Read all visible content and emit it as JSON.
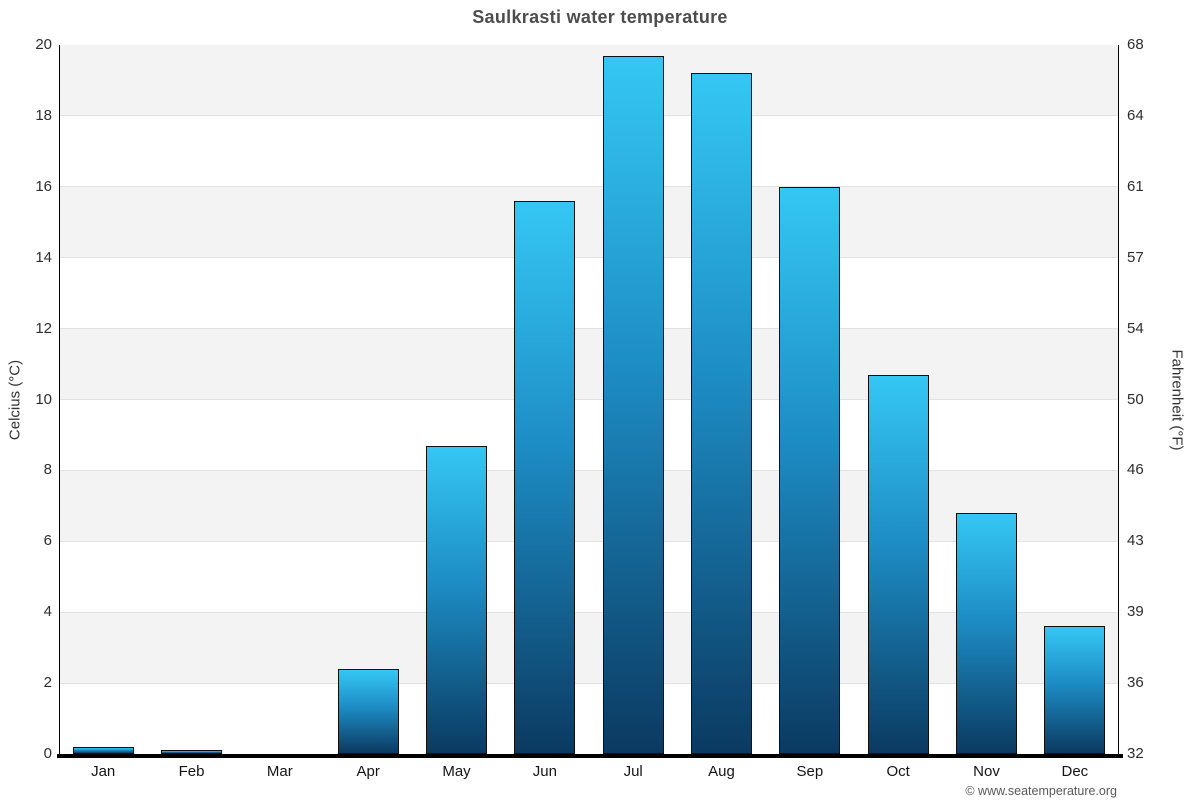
{
  "page": {
    "footer": "© www.seatemperature.org"
  },
  "chart_data": {
    "type": "bar",
    "title": "Saulkrasti water temperature",
    "categories": [
      "Jan",
      "Feb",
      "Mar",
      "Apr",
      "May",
      "Jun",
      "Jul",
      "Aug",
      "Sep",
      "Oct",
      "Nov",
      "Dec"
    ],
    "values": [
      0.2,
      0.1,
      0,
      2.4,
      8.7,
      15.6,
      19.7,
      19.2,
      16.0,
      10.7,
      6.8,
      3.6
    ],
    "unit": "°C",
    "ylabel_left": "Celcius (°C)",
    "ylabel_right": "Fahrenheit (°F)",
    "ylim": [
      0,
      20
    ],
    "yticks_left": [
      0,
      2,
      4,
      6,
      8,
      10,
      12,
      14,
      16,
      18,
      20
    ],
    "yticks_right": [
      32,
      36,
      39,
      43,
      46,
      50,
      54,
      57,
      61,
      64,
      68
    ],
    "grid": true,
    "legend": "none",
    "colors": {
      "band_fill": "#f3f3f3",
      "gridline": "#e2e2e2",
      "bar_gradient_top": "#35c7f4",
      "bar_gradient_mid": "#1d8cc4",
      "bar_gradient_bottom": "#0b3a61",
      "bar_border": "#0d0f12",
      "axis": "#000000"
    }
  }
}
